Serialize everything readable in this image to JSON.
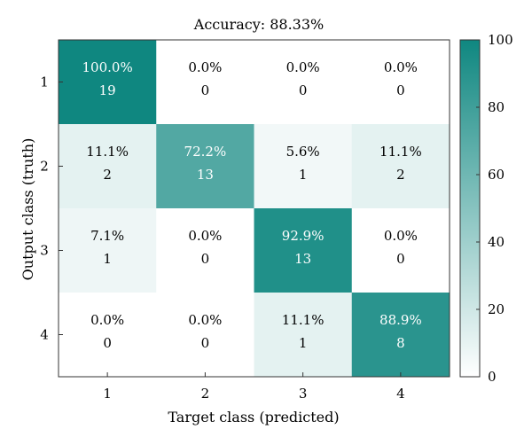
{
  "chart_data": {
    "type": "heatmap",
    "title": "Accuracy: 88.33%",
    "xlabel": "Target class (predicted)",
    "ylabel": "Output class (truth)",
    "x_categories": [
      "1",
      "2",
      "3",
      "4"
    ],
    "y_categories": [
      "1",
      "2",
      "3",
      "4"
    ],
    "percent_labels": [
      [
        "100.0%",
        "0.0%",
        "0.0%",
        "0.0%"
      ],
      [
        "11.1%",
        "72.2%",
        "5.6%",
        "11.1%"
      ],
      [
        "7.1%",
        "0.0%",
        "92.9%",
        "0.0%"
      ],
      [
        "0.0%",
        "0.0%",
        "11.1%",
        "88.9%"
      ]
    ],
    "percent_values": [
      [
        100.0,
        0.0,
        0.0,
        0.0
      ],
      [
        11.1,
        72.2,
        5.6,
        11.1
      ],
      [
        7.1,
        0.0,
        92.9,
        0.0
      ],
      [
        0.0,
        0.0,
        11.1,
        88.9
      ]
    ],
    "count_labels": [
      [
        "19",
        "0",
        "0",
        "0"
      ],
      [
        "2",
        "13",
        "1",
        "2"
      ],
      [
        "1",
        "0",
        "13",
        "0"
      ],
      [
        "0",
        "0",
        "1",
        "8"
      ]
    ],
    "colorbar": {
      "min": 0,
      "max": 100,
      "ticks": [
        "0",
        "20",
        "40",
        "60",
        "80",
        "100"
      ],
      "low_color": "#ffffff",
      "high_color": "#0f8780"
    },
    "legend": "colorbar right",
    "grid": false
  }
}
